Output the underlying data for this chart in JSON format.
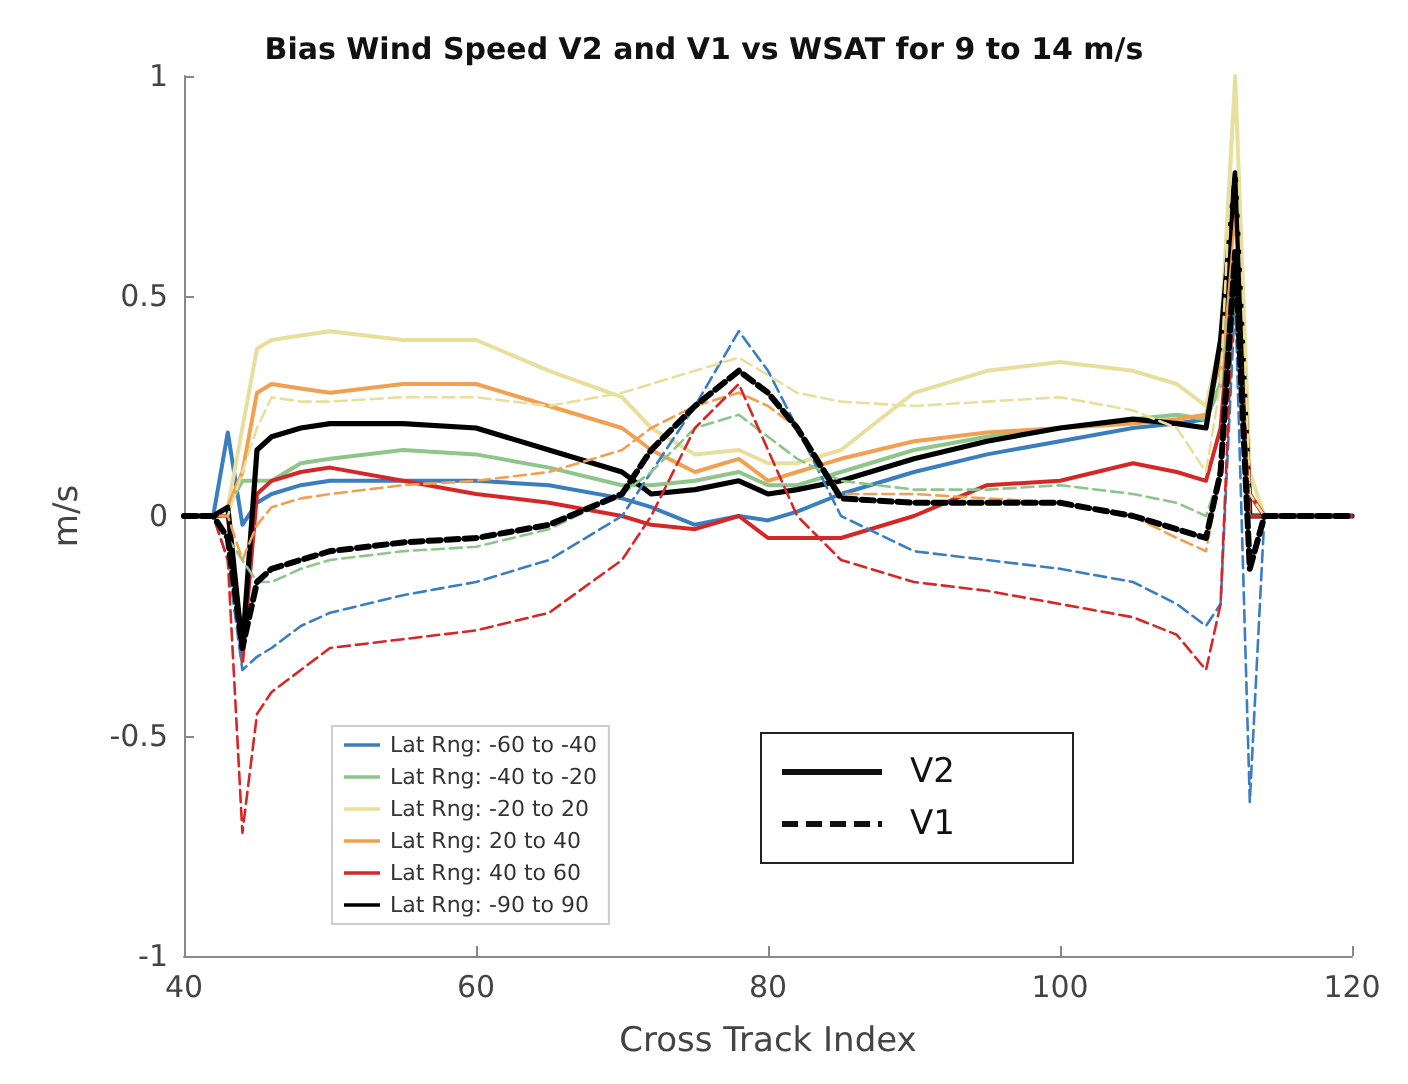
{
  "chart_data": {
    "type": "line",
    "title": "Bias Wind Speed V2 and V1 vs WSAT for 9 to 14 m/s",
    "xlabel": "Cross Track Index",
    "ylabel": "m/s",
    "x": [
      40,
      42,
      43,
      44,
      45,
      46,
      48,
      50,
      55,
      60,
      65,
      70,
      72,
      75,
      78,
      80,
      82,
      85,
      90,
      95,
      100,
      105,
      108,
      110,
      111,
      112,
      113,
      114,
      120
    ],
    "xlim": [
      40,
      120
    ],
    "xticks": [
      40,
      60,
      80,
      100,
      120
    ],
    "ylim": [
      -1,
      1
    ],
    "yticks": [
      -1,
      -0.5,
      0,
      0.5,
      1
    ],
    "grid": false,
    "legend": "bottom left",
    "marker": "none",
    "annotations": [
      "V2",
      "V1"
    ],
    "series": [
      {
        "name": "Lat Rng: -60 to -40",
        "color": "#3a7ebf",
        "line_style": "solid",
        "values": [
          0,
          0,
          0.19,
          -0.02,
          0.03,
          0.05,
          0.07,
          0.08,
          0.08,
          0.08,
          0.07,
          0.04,
          0.02,
          -0.02,
          0,
          -0.01,
          0.01,
          0.05,
          0.1,
          0.14,
          0.17,
          0.2,
          0.21,
          0.22,
          0.3,
          0.6,
          0.05,
          0,
          0
        ]
      },
      {
        "name": "Lat Rng: -40 to -20",
        "color": "#8dc58a",
        "line_style": "solid",
        "values": [
          0,
          0,
          0.02,
          0.08,
          0.08,
          0.08,
          0.12,
          0.13,
          0.15,
          0.14,
          0.11,
          0.07,
          0.07,
          0.08,
          0.1,
          0.07,
          0.07,
          0.1,
          0.15,
          0.18,
          0.2,
          0.22,
          0.23,
          0.22,
          0.3,
          0.6,
          0.05,
          0,
          0
        ]
      },
      {
        "name": "Lat Rng: -20 to 20",
        "color": "#e8df9c",
        "line_style": "solid",
        "values": [
          0,
          0,
          0.02,
          0.2,
          0.38,
          0.4,
          0.41,
          0.42,
          0.4,
          0.4,
          0.33,
          0.27,
          0.2,
          0.14,
          0.15,
          0.12,
          0.12,
          0.15,
          0.28,
          0.33,
          0.35,
          0.33,
          0.3,
          0.25,
          0.4,
          1,
          0.1,
          0,
          0
        ]
      },
      {
        "name": "Lat Rng: 20 to 40",
        "color": "#f0a050",
        "line_style": "solid",
        "values": [
          0,
          0,
          0.02,
          0.1,
          0.28,
          0.3,
          0.29,
          0.28,
          0.3,
          0.3,
          0.25,
          0.2,
          0.15,
          0.1,
          0.13,
          0.08,
          0.1,
          0.13,
          0.17,
          0.19,
          0.2,
          0.21,
          0.22,
          0.23,
          0.35,
          0.7,
          0.05,
          0,
          0
        ]
      },
      {
        "name": "Lat Rng: 40 to 60",
        "color": "#d62728",
        "line_style": "solid",
        "values": [
          0,
          0,
          0,
          -0.33,
          0.05,
          0.08,
          0.1,
          0.11,
          0.08,
          0.05,
          0.03,
          0,
          -0.02,
          -0.03,
          0,
          -0.05,
          -0.05,
          -0.05,
          0,
          0.07,
          0.08,
          0.12,
          0.1,
          0.08,
          0.2,
          0.6,
          0.05,
          0,
          0
        ]
      },
      {
        "name": "Lat Rng: -90 to 90",
        "color": "#000000",
        "line_style": "solid",
        "values": [
          0,
          0,
          0.02,
          -0.3,
          0.15,
          0.18,
          0.2,
          0.21,
          0.21,
          0.2,
          0.15,
          0.1,
          0.05,
          0.06,
          0.08,
          0.05,
          0.06,
          0.08,
          0.13,
          0.17,
          0.2,
          0.22,
          0.21,
          0.2,
          0.4,
          0.78,
          0,
          0,
          0
        ]
      },
      {
        "color": "#3a7ebf",
        "line_style": "dashed",
        "values": [
          0,
          0,
          -0.1,
          -0.35,
          -0.32,
          -0.3,
          -0.25,
          -0.22,
          -0.18,
          -0.15,
          -0.1,
          0,
          0.1,
          0.25,
          0.42,
          0.33,
          0.2,
          0,
          -0.08,
          -0.1,
          -0.12,
          -0.15,
          -0.2,
          -0.25,
          -0.2,
          0.5,
          -0.65,
          0,
          0
        ]
      },
      {
        "color": "#8dc58a",
        "line_style": "dashed",
        "values": [
          0,
          0,
          -0.05,
          -0.1,
          -0.15,
          -0.15,
          -0.12,
          -0.1,
          -0.08,
          -0.07,
          -0.03,
          0.05,
          0.1,
          0.2,
          0.23,
          0.18,
          0.13,
          0.08,
          0.06,
          0.06,
          0.07,
          0.05,
          0.03,
          0,
          0.1,
          0.5,
          0,
          0,
          0
        ]
      },
      {
        "color": "#e8df9c",
        "line_style": "dashed",
        "values": [
          0,
          0,
          0,
          0.1,
          0.2,
          0.27,
          0.26,
          0.26,
          0.27,
          0.27,
          0.25,
          0.28,
          0.3,
          0.33,
          0.36,
          0.32,
          0.28,
          0.26,
          0.25,
          0.26,
          0.27,
          0.24,
          0.2,
          0.1,
          0.3,
          1,
          0.05,
          0,
          0
        ]
      },
      {
        "color": "#f0a050",
        "line_style": "dashed",
        "values": [
          0,
          0,
          0,
          -0.1,
          -0.02,
          0.02,
          0.04,
          0.05,
          0.07,
          0.08,
          0.1,
          0.15,
          0.2,
          0.25,
          0.28,
          0.25,
          0.2,
          0.05,
          0.05,
          0.04,
          0.03,
          0,
          -0.05,
          -0.08,
          0.1,
          0.6,
          0,
          0,
          0
        ]
      },
      {
        "color": "#d62728",
        "line_style": "dashed",
        "values": [
          0,
          0,
          -0.1,
          -0.72,
          -0.45,
          -0.4,
          -0.35,
          -0.3,
          -0.28,
          -0.26,
          -0.22,
          -0.1,
          0,
          0.2,
          0.3,
          0.15,
          0,
          -0.1,
          -0.15,
          -0.17,
          -0.2,
          -0.23,
          -0.27,
          -0.35,
          -0.2,
          0.6,
          0,
          0,
          0
        ]
      },
      {
        "color": "#000000",
        "line_style": "dashed",
        "values": [
          0,
          0,
          -0.05,
          -0.3,
          -0.15,
          -0.12,
          -0.1,
          -0.08,
          -0.06,
          -0.05,
          -0.02,
          0.05,
          0.15,
          0.25,
          0.33,
          0.28,
          0.2,
          0.04,
          0.03,
          0.03,
          0.03,
          0,
          -0.03,
          -0.05,
          0.1,
          0.6,
          -0.12,
          0,
          0
        ]
      }
    ]
  }
}
